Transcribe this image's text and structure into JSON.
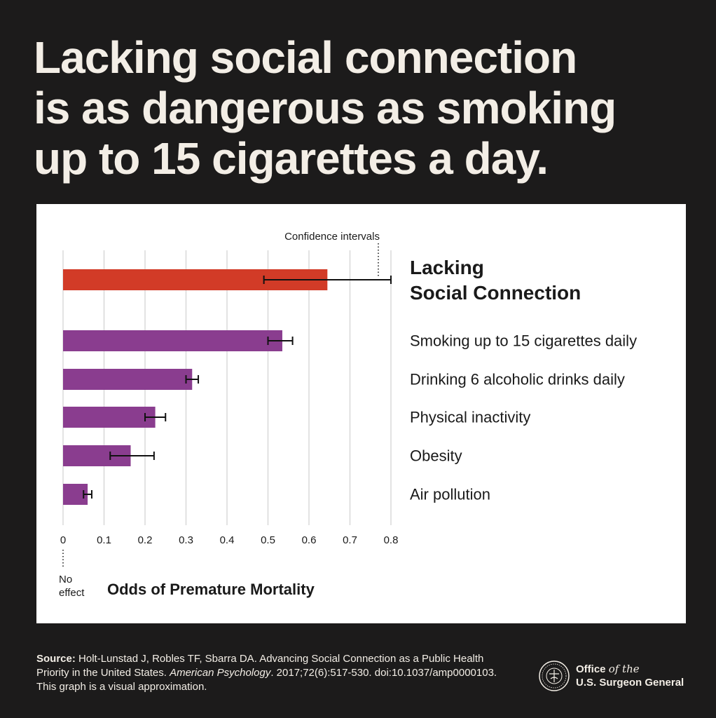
{
  "headline": {
    "lines": [
      "Lacking social connection",
      "is as dangerous as smoking",
      "up to 15 cigarettes a day."
    ]
  },
  "chart_data": {
    "type": "bar",
    "orientation": "horizontal",
    "xlabel": "Odds of Premature Mortality",
    "xlim": [
      0,
      0.8
    ],
    "xticks": [
      "0",
      "0.1",
      "0.2",
      "0.3",
      "0.4",
      "0.5",
      "0.6",
      "0.7",
      "0.8"
    ],
    "grid": true,
    "annotations": {
      "confidence_intervals": "Confidence intervals",
      "no_effect_line1": "No",
      "no_effect_line2": "effect"
    },
    "categories": [
      "Lacking Social Connection",
      "Smoking up to 15 cigarettes daily",
      "Drinking 6 alcoholic drinks daily",
      "Physical inactivity",
      "Obesity",
      "Air pollution"
    ],
    "label_lines": [
      [
        "Lacking",
        "Social Connection"
      ],
      [
        "Smoking up to 15 cigarettes daily"
      ],
      [
        "Drinking 6 alcoholic drinks daily"
      ],
      [
        "Physical inactivity"
      ],
      [
        "Obesity"
      ],
      [
        "Air pollution"
      ]
    ],
    "values": [
      0.645,
      0.535,
      0.315,
      0.225,
      0.165,
      0.06
    ],
    "ci_low": [
      0.49,
      0.5,
      0.3,
      0.2,
      0.115,
      0.05
    ],
    "ci_high": [
      0.8,
      0.56,
      0.33,
      0.25,
      0.222,
      0.07
    ],
    "colors": [
      "#d23b27",
      "#8a3d8f",
      "#8a3d8f",
      "#8a3d8f",
      "#8a3d8f",
      "#8a3d8f"
    ]
  },
  "footer": {
    "source_label": "Source:",
    "source_text1": " Holt-Lunstad J, Robles TF, Sbarra DA. Advancing Social Connection as a Public Health Priority in the United States. ",
    "journal": "American Psychology",
    "source_text2": ". 2017;72(6):517-530. doi:10.1037/amp0000103. This graph is a visual approximation.",
    "office_line1": "Office",
    "office_of_the": "of the",
    "office_line2": "U.S. Surgeon General"
  },
  "colors": {
    "background": "#1c1b1b",
    "text_light": "#f3eee6",
    "highlight_bar": "#d23b27",
    "comparison_bar": "#8a3d8f"
  }
}
